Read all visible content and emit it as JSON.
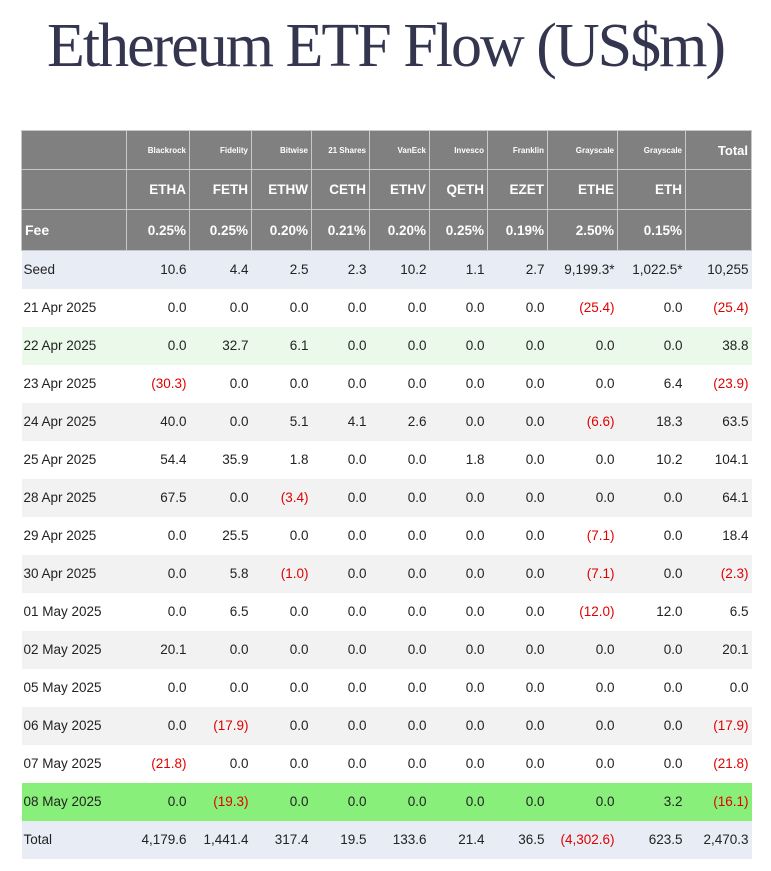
{
  "title": "Ethereum ETF Flow (US$m)",
  "colors": {
    "header_bg": "#808080",
    "negative": "#e00000",
    "highlight_latest": "#88f07a",
    "highlight_light": "#eaf9ea",
    "seed_total_bg": "#e8ecf5"
  },
  "issuers": [
    "Blackrock",
    "Fidelity",
    "Bitwise",
    "21 Shares",
    "VanEck",
    "Invesco",
    "Franklin",
    "Grayscale",
    "Grayscale"
  ],
  "total_label": "Total",
  "tickers": [
    "ETHA",
    "FETH",
    "ETHW",
    "CETH",
    "ETHV",
    "QETH",
    "EZET",
    "ETHE",
    "ETH"
  ],
  "fee_label": "Fee",
  "fees": [
    "0.25%",
    "0.25%",
    "0.20%",
    "0.21%",
    "0.20%",
    "0.25%",
    "0.19%",
    "2.50%",
    "0.15%"
  ],
  "rows": [
    {
      "label": "Seed",
      "values": [
        "10.6",
        "4.4",
        "2.5",
        "2.3",
        "10.2",
        "1.1",
        "2.7",
        "9,199.3*",
        "1,022.5*",
        "10,255"
      ]
    },
    {
      "label": "21 Apr 2025",
      "values": [
        "0.0",
        "0.0",
        "0.0",
        "0.0",
        "0.0",
        "0.0",
        "0.0",
        "(25.4)",
        "0.0",
        "(25.4)"
      ]
    },
    {
      "label": "22 Apr 2025",
      "values": [
        "0.0",
        "32.7",
        "6.1",
        "0.0",
        "0.0",
        "0.0",
        "0.0",
        "0.0",
        "0.0",
        "38.8"
      ]
    },
    {
      "label": "23 Apr 2025",
      "values": [
        "(30.3)",
        "0.0",
        "0.0",
        "0.0",
        "0.0",
        "0.0",
        "0.0",
        "0.0",
        "6.4",
        "(23.9)"
      ]
    },
    {
      "label": "24 Apr 2025",
      "values": [
        "40.0",
        "0.0",
        "5.1",
        "4.1",
        "2.6",
        "0.0",
        "0.0",
        "(6.6)",
        "18.3",
        "63.5"
      ]
    },
    {
      "label": "25 Apr 2025",
      "values": [
        "54.4",
        "35.9",
        "1.8",
        "0.0",
        "0.0",
        "1.8",
        "0.0",
        "0.0",
        "10.2",
        "104.1"
      ]
    },
    {
      "label": "28 Apr 2025",
      "values": [
        "67.5",
        "0.0",
        "(3.4)",
        "0.0",
        "0.0",
        "0.0",
        "0.0",
        "0.0",
        "0.0",
        "64.1"
      ]
    },
    {
      "label": "29 Apr 2025",
      "values": [
        "0.0",
        "25.5",
        "0.0",
        "0.0",
        "0.0",
        "0.0",
        "0.0",
        "(7.1)",
        "0.0",
        "18.4"
      ]
    },
    {
      "label": "30 Apr 2025",
      "values": [
        "0.0",
        "5.8",
        "(1.0)",
        "0.0",
        "0.0",
        "0.0",
        "0.0",
        "(7.1)",
        "0.0",
        "(2.3)"
      ]
    },
    {
      "label": "01 May 2025",
      "values": [
        "0.0",
        "6.5",
        "0.0",
        "0.0",
        "0.0",
        "0.0",
        "0.0",
        "(12.0)",
        "12.0",
        "6.5"
      ]
    },
    {
      "label": "02 May 2025",
      "values": [
        "20.1",
        "0.0",
        "0.0",
        "0.0",
        "0.0",
        "0.0",
        "0.0",
        "0.0",
        "0.0",
        "20.1"
      ]
    },
    {
      "label": "05 May 2025",
      "values": [
        "0.0",
        "0.0",
        "0.0",
        "0.0",
        "0.0",
        "0.0",
        "0.0",
        "0.0",
        "0.0",
        "0.0"
      ]
    },
    {
      "label": "06 May 2025",
      "values": [
        "0.0",
        "(17.9)",
        "0.0",
        "0.0",
        "0.0",
        "0.0",
        "0.0",
        "0.0",
        "0.0",
        "(17.9)"
      ]
    },
    {
      "label": "07 May 2025",
      "values": [
        "(21.8)",
        "0.0",
        "0.0",
        "0.0",
        "0.0",
        "0.0",
        "0.0",
        "0.0",
        "0.0",
        "(21.8)"
      ]
    },
    {
      "label": "08 May 2025",
      "values": [
        "0.0",
        "(19.3)",
        "0.0",
        "0.0",
        "0.0",
        "0.0",
        "0.0",
        "0.0",
        "3.2",
        "(16.1)"
      ]
    },
    {
      "label": "Total",
      "values": [
        "4,179.6",
        "1,441.4",
        "317.4",
        "19.5",
        "133.6",
        "21.4",
        "36.5",
        "(4,302.6)",
        "623.5",
        "2,470.3"
      ]
    }
  ]
}
